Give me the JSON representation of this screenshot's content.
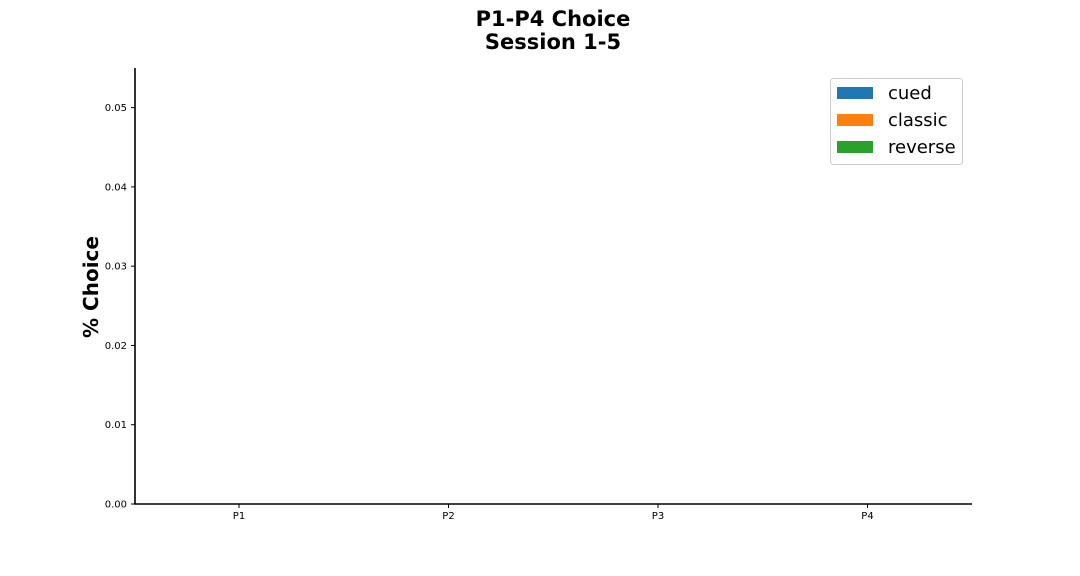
{
  "chart_data": {
    "type": "bar",
    "title": "P1-P4 Choice",
    "subtitle": "Session 1-5",
    "xlabel": "",
    "ylabel": "% Choice",
    "categories": [
      "P1",
      "P2",
      "P3",
      "P4"
    ],
    "series": [
      {
        "name": "cued",
        "color": "#1f77b4",
        "values": [
          0,
          0,
          0,
          0
        ]
      },
      {
        "name": "classic",
        "color": "#ff7f0e",
        "values": [
          0,
          0,
          0,
          0
        ]
      },
      {
        "name": "reverse",
        "color": "#2ca02c",
        "values": [
          0,
          0,
          0,
          0
        ]
      }
    ],
    "ylim": [
      0,
      0.055
    ],
    "yticks": [
      "0.00",
      "0.01",
      "0.02",
      "0.03",
      "0.04",
      "0.05"
    ],
    "grid": false,
    "legend": "top-right"
  }
}
